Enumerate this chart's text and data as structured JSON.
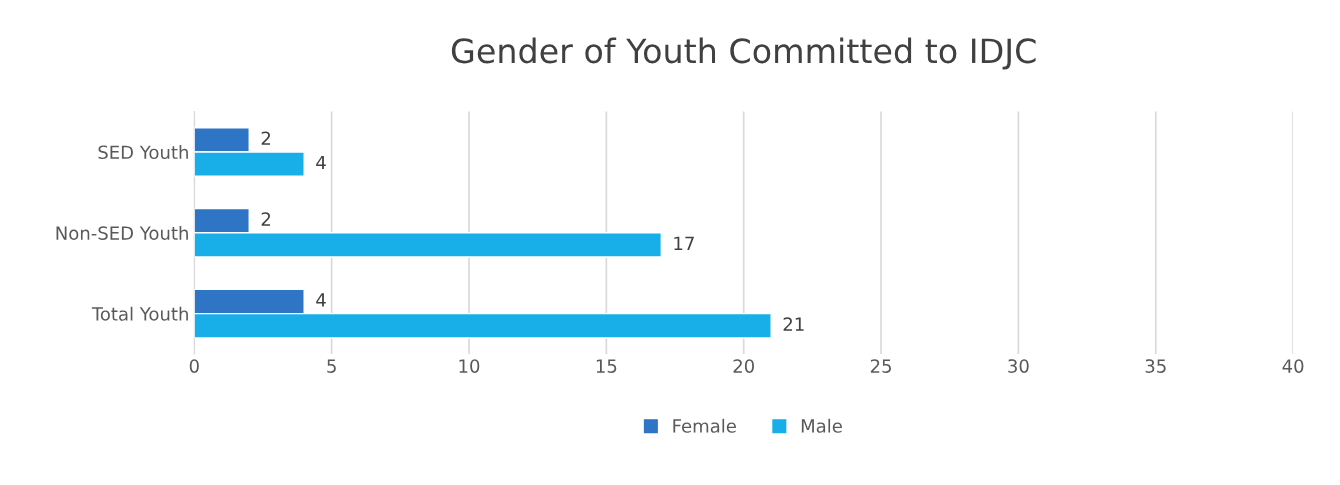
{
  "chart_data": {
    "type": "bar",
    "title": "Gender of Youth Committed to IDJC",
    "orientation": "horizontal",
    "categories": [
      "SED Youth",
      "Non-SED Youth",
      "Total Youth"
    ],
    "series": [
      {
        "name": "Female",
        "color": "#2e75c6",
        "values": [
          2,
          2,
          4
        ]
      },
      {
        "name": "Male",
        "color": "#18aee8",
        "values": [
          4,
          17,
          21
        ]
      }
    ],
    "xlim": [
      0,
      40
    ],
    "xticks": [
      0,
      5,
      10,
      15,
      20,
      25,
      30,
      35,
      40
    ],
    "grid": "x",
    "legend": "bottom",
    "data_labels": true
  }
}
